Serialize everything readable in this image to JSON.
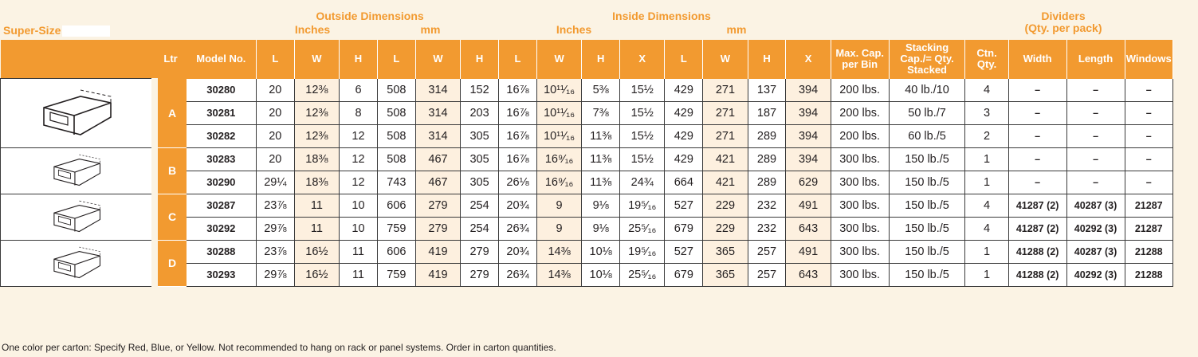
{
  "title": "Super-Size",
  "groups": {
    "outside": "Outside Dimensions",
    "inside": "Inside Dimensions",
    "dividers_line1": "Dividers",
    "dividers_line2": "(Qty. per pack)",
    "inches": "Inches",
    "mm": "mm"
  },
  "columns": [
    "Ltr",
    "Model No.",
    "L",
    "W",
    "H",
    "L",
    "W",
    "H",
    "L",
    "W",
    "H",
    "X",
    "L",
    "W",
    "H",
    "X",
    "Max. Cap. per Bin",
    "Stacking Cap./= Qty. Stacked",
    "Ctn. Qty.",
    "Width",
    "Length",
    "Windows"
  ],
  "groups_rows": [
    {
      "ltr": "A",
      "rows": [
        [
          "30280",
          "20",
          "12⅜",
          "6",
          "508",
          "314",
          "152",
          "16⅞",
          "10¹¹⁄₁₆",
          "5⅜",
          "15½",
          "429",
          "271",
          "137",
          "394",
          "200 lbs.",
          "40 lb./10",
          "4",
          "–",
          "–",
          "–"
        ],
        [
          "30281",
          "20",
          "12⅜",
          "8",
          "508",
          "314",
          "203",
          "16⅞",
          "10¹¹⁄₁₆",
          "7⅜",
          "15½",
          "429",
          "271",
          "187",
          "394",
          "200 lbs.",
          "50 lb./7",
          "3",
          "–",
          "–",
          "–"
        ],
        [
          "30282",
          "20",
          "12⅜",
          "12",
          "508",
          "314",
          "305",
          "16⅞",
          "10¹¹⁄₁₆",
          "11⅜",
          "15½",
          "429",
          "271",
          "289",
          "394",
          "200 lbs.",
          "60 lb./5",
          "2",
          "–",
          "–",
          "–"
        ]
      ]
    },
    {
      "ltr": "B",
      "rows": [
        [
          "30283",
          "20",
          "18⅜",
          "12",
          "508",
          "467",
          "305",
          "16⅞",
          "16⁹⁄₁₆",
          "11⅜",
          "15½",
          "429",
          "421",
          "289",
          "394",
          "300 lbs.",
          "150 lb./5",
          "1",
          "–",
          "–",
          "–"
        ],
        [
          "30290",
          "29¼",
          "18⅜",
          "12",
          "743",
          "467",
          "305",
          "26⅛",
          "16⁹⁄₁₆",
          "11⅜",
          "24¾",
          "664",
          "421",
          "289",
          "629",
          "300 lbs.",
          "150 lb./5",
          "1",
          "–",
          "–",
          "–"
        ]
      ]
    },
    {
      "ltr": "C",
      "rows": [
        [
          "30287",
          "23⅞",
          "11",
          "10",
          "606",
          "279",
          "254",
          "20¾",
          "9",
          "9⅛",
          "19⁵⁄₁₆",
          "527",
          "229",
          "232",
          "491",
          "300 lbs.",
          "150 lb./5",
          "4",
          "41287 (2)",
          "40287 (3)",
          "21287"
        ],
        [
          "30292",
          "29⅞",
          "11",
          "10",
          "759",
          "279",
          "254",
          "26¾",
          "9",
          "9⅛",
          "25⁵⁄₁₆",
          "679",
          "229",
          "232",
          "643",
          "300 lbs.",
          "150 lb./5",
          "4",
          "41287 (2)",
          "40292 (3)",
          "21287"
        ]
      ]
    },
    {
      "ltr": "D",
      "rows": [
        [
          "30288",
          "23⅞",
          "16½",
          "11",
          "606",
          "419",
          "279",
          "20¾",
          "14⅜",
          "10⅛",
          "19⁵⁄₁₆",
          "527",
          "365",
          "257",
          "491",
          "300 lbs.",
          "150 lb./5",
          "1",
          "41288 (2)",
          "40287 (3)",
          "21288"
        ],
        [
          "30293",
          "29⅞",
          "16½",
          "11",
          "759",
          "419",
          "279",
          "26¾",
          "14⅜",
          "10⅛",
          "25⁵⁄₁₆",
          "679",
          "365",
          "257",
          "643",
          "300 lbs.",
          "150 lb./5",
          "1",
          "41288 (2)",
          "40292 (3)",
          "21288"
        ]
      ]
    }
  ],
  "note": "One color per carton: Specify Red, Blue, or Yellow.  Not recommended to hang on rack or panel systems.  Order in carton quantities.",
  "colors": {
    "accent": "#f29a30",
    "background": "#fbf3e4",
    "shade": "#fdf0df"
  }
}
